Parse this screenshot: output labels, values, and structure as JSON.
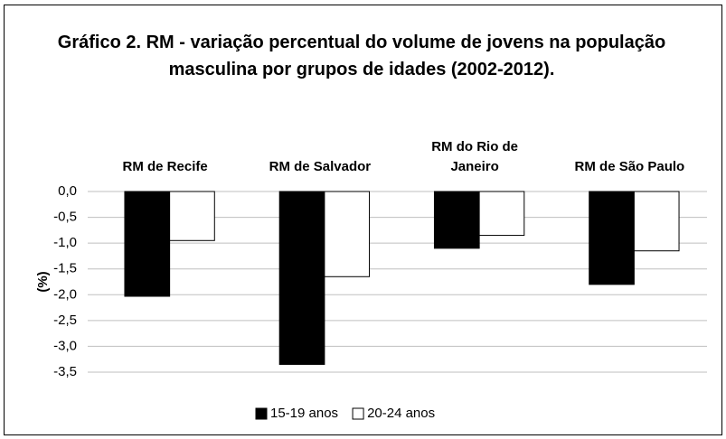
{
  "chart_data": {
    "type": "bar",
    "title": "Gráfico 2. RM - variação percentual do volume de jovens na população masculina por grupos de idades (2002-2012).",
    "y_label": "(%)",
    "categories": [
      "RM de Recife",
      "RM de Salvador",
      "RM do Rio de Janeiro",
      "RM de São Paulo"
    ],
    "series": [
      {
        "name": "15-19 anos",
        "color": "#000000",
        "values": [
          -2.03,
          -3.35,
          -1.1,
          -1.8
        ]
      },
      {
        "name": "20-24 anos",
        "color": "#ffffff",
        "values": [
          -0.95,
          -1.65,
          -0.85,
          -1.15
        ]
      }
    ],
    "ylim": [
      -3.5,
      0
    ],
    "yticks": [
      {
        "value": 0,
        "label": "0,0"
      },
      {
        "value": -0.5,
        "label": "-0,5"
      },
      {
        "value": -1,
        "label": "-1,0"
      },
      {
        "value": -1.5,
        "label": "-1,5"
      },
      {
        "value": -2,
        "label": "-2,0"
      },
      {
        "value": -2.5,
        "label": "-2,5"
      },
      {
        "value": -3,
        "label": "-3,0"
      },
      {
        "value": -3.5,
        "label": "-3,5"
      }
    ],
    "grid": true,
    "legend": "bottom"
  }
}
